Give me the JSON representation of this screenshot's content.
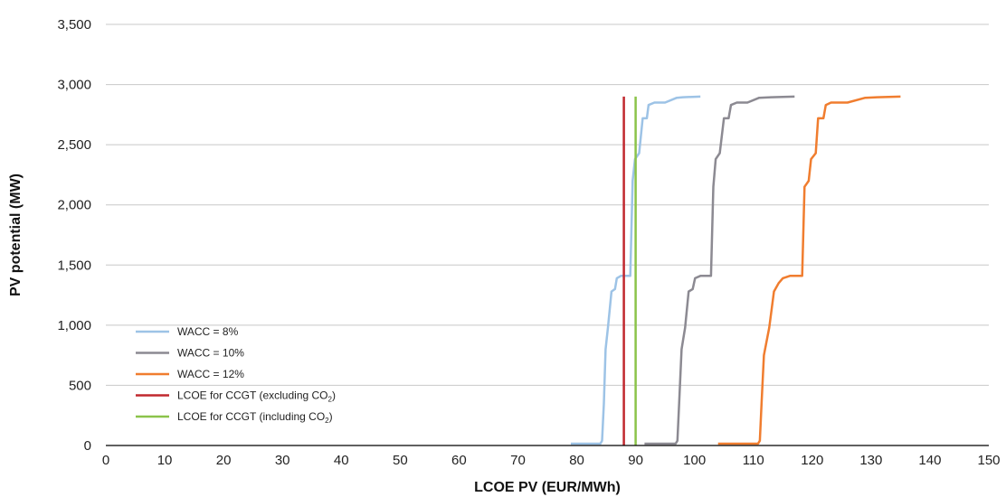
{
  "chart_data": {
    "type": "line",
    "xlabel": "LCOE PV (EUR/MWh)",
    "ylabel": "PV potential (MW)",
    "xlim": [
      0,
      150
    ],
    "ylim": [
      0,
      3500
    ],
    "x_ticks": [
      "0",
      "10",
      "20",
      "30",
      "40",
      "50",
      "60",
      "70",
      "80",
      "90",
      "100",
      "110",
      "120",
      "130",
      "140",
      "150"
    ],
    "y_ticks": [
      "0",
      "500",
      "1,000",
      "1,500",
      "2,000",
      "2,500",
      "3,000",
      "3,500"
    ],
    "grid": "horizontal",
    "legend_position": "bottom-left",
    "series": [
      {
        "name": "WACC = 8%",
        "color": "#9dc3e6",
        "points": [
          [
            79,
            15
          ],
          [
            84,
            15
          ],
          [
            84.3,
            40
          ],
          [
            84.6,
            350
          ],
          [
            84.9,
            800
          ],
          [
            85.3,
            980
          ],
          [
            85.9,
            1280
          ],
          [
            86.5,
            1300
          ],
          [
            86.8,
            1390
          ],
          [
            87.5,
            1410
          ],
          [
            89.1,
            1410
          ],
          [
            89.5,
            2200
          ],
          [
            89.9,
            2380
          ],
          [
            90.6,
            2430
          ],
          [
            91.2,
            2720
          ],
          [
            91.9,
            2720
          ],
          [
            92.2,
            2830
          ],
          [
            93.2,
            2850
          ],
          [
            95,
            2850
          ],
          [
            97,
            2890
          ],
          [
            98,
            2895
          ],
          [
            101,
            2900
          ]
        ]
      },
      {
        "name": "WACC = 10%",
        "color": "#8c8a92",
        "points": [
          [
            91.5,
            15
          ],
          [
            96.8,
            15
          ],
          [
            97.1,
            40
          ],
          [
            97.4,
            350
          ],
          [
            97.8,
            800
          ],
          [
            98.4,
            980
          ],
          [
            99,
            1280
          ],
          [
            99.7,
            1300
          ],
          [
            100.1,
            1390
          ],
          [
            101,
            1410
          ],
          [
            102.8,
            1410
          ],
          [
            103.2,
            2150
          ],
          [
            103.6,
            2380
          ],
          [
            104.3,
            2430
          ],
          [
            105,
            2720
          ],
          [
            105.8,
            2720
          ],
          [
            106.2,
            2830
          ],
          [
            107.2,
            2850
          ],
          [
            109,
            2850
          ],
          [
            111,
            2890
          ],
          [
            113,
            2895
          ],
          [
            117,
            2900
          ]
        ]
      },
      {
        "name": "WACC = 12%",
        "color": "#f07d2f",
        "points": [
          [
            104,
            15
          ],
          [
            110.8,
            15
          ],
          [
            111.1,
            40
          ],
          [
            111.4,
            350
          ],
          [
            111.8,
            750
          ],
          [
            112.7,
            980
          ],
          [
            113.5,
            1280
          ],
          [
            114.3,
            1350
          ],
          [
            115,
            1390
          ],
          [
            116.2,
            1410
          ],
          [
            118.3,
            1410
          ],
          [
            118.7,
            2150
          ],
          [
            119.4,
            2200
          ],
          [
            119.8,
            2380
          ],
          [
            120.6,
            2430
          ],
          [
            121,
            2720
          ],
          [
            121.9,
            2720
          ],
          [
            122.3,
            2830
          ],
          [
            123.2,
            2850
          ],
          [
            126,
            2850
          ],
          [
            129,
            2890
          ],
          [
            131,
            2895
          ],
          [
            135,
            2900
          ]
        ]
      },
      {
        "name": "LCOE for CCGT (excluding CO",
        "name_subscript": "2",
        "name_suffix": ")",
        "color": "#c0282e",
        "points": [
          [
            88,
            0
          ],
          [
            88,
            2900
          ]
        ]
      },
      {
        "name": "LCOE for CCGT (including CO",
        "name_subscript": "2",
        "name_suffix": ")",
        "color": "#8bc34a",
        "points": [
          [
            90,
            0
          ],
          [
            90,
            2900
          ]
        ]
      }
    ]
  }
}
